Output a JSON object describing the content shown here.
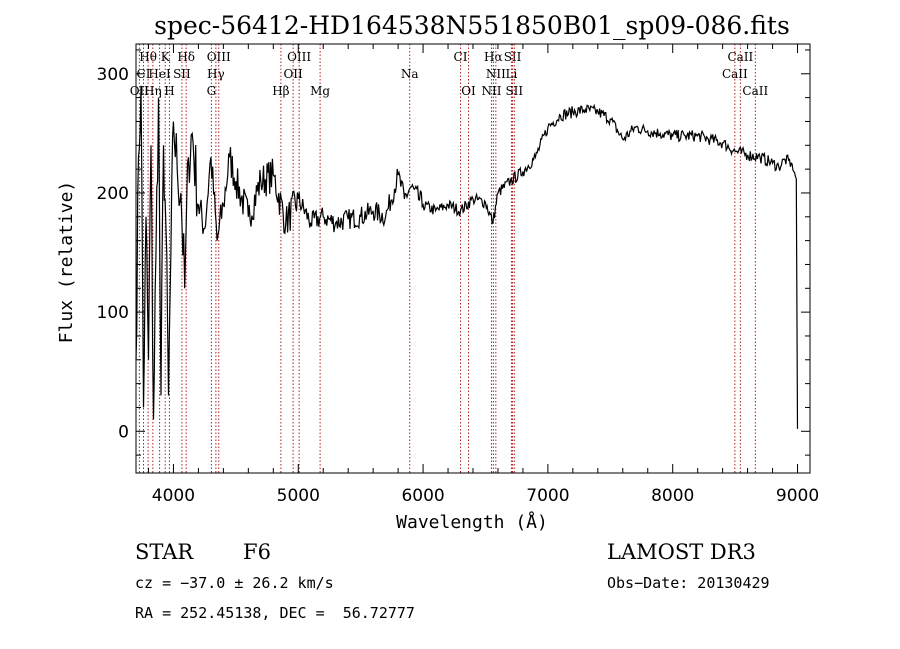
{
  "chart_data": {
    "type": "line",
    "title": "spec-56412-HD164538N551850B01_sp09-086.fits",
    "xlabel": "Wavelength (Å)",
    "ylabel": "Flux (relative)",
    "xlim": [
      3700,
      9100
    ],
    "ylim": [
      -35,
      325
    ],
    "xticks": [
      4000,
      5000,
      6000,
      7000,
      8000,
      9000
    ],
    "yticks": [
      0,
      100,
      200,
      300
    ],
    "grid": false,
    "series": [
      {
        "name": "flux",
        "x": [
          3700,
          3720,
          3740,
          3760,
          3780,
          3800,
          3820,
          3840,
          3860,
          3880,
          3900,
          3920,
          3940,
          3960,
          3980,
          4000,
          4030,
          4060,
          4090,
          4120,
          4150,
          4200,
          4250,
          4300,
          4350,
          4400,
          4450,
          4500,
          4600,
          4700,
          4800,
          4900,
          5000,
          5100,
          5200,
          5300,
          5400,
          5500,
          5600,
          5700,
          5800,
          5850,
          5900,
          6000,
          6100,
          6200,
          6300,
          6400,
          6500,
          6560,
          6600,
          6700,
          6800,
          6900,
          7000,
          7100,
          7200,
          7300,
          7400,
          7500,
          7600,
          7700,
          7800,
          7900,
          8000,
          8100,
          8200,
          8300,
          8400,
          8500,
          8600,
          8700,
          8800,
          8850,
          8900,
          8950,
          8990,
          9000
        ],
        "y": [
          60,
          230,
          290,
          20,
          180,
          60,
          240,
          10,
          150,
          280,
          30,
          240,
          170,
          30,
          150,
          260,
          220,
          200,
          120,
          230,
          250,
          190,
          170,
          230,
          160,
          190,
          230,
          210,
          180,
          210,
          215,
          175,
          195,
          175,
          180,
          175,
          178,
          180,
          185,
          180,
          215,
          195,
          205,
          190,
          185,
          190,
          185,
          195,
          192,
          175,
          200,
          210,
          218,
          230,
          255,
          265,
          268,
          270,
          268,
          262,
          245,
          255,
          252,
          250,
          248,
          248,
          248,
          245,
          242,
          235,
          232,
          230,
          225,
          222,
          228,
          225,
          212,
          2
        ]
      }
    ],
    "lines": [
      {
        "label": "Hθ",
        "x": 3797,
        "row": 1
      },
      {
        "label": "K",
        "x": 3934,
        "row": 1
      },
      {
        "label": "Hδ",
        "x": 4102,
        "row": 1
      },
      {
        "label": "OIII",
        "x": 4363,
        "row": 1
      },
      {
        "label": "OIII",
        "x": 5007,
        "row": 1
      },
      {
        "label": "CI",
        "x": 6300,
        "row": 1
      },
      {
        "label": "Hα",
        "x": 6563,
        "row": 1
      },
      {
        "label": "SII",
        "x": 6717,
        "row": 1
      },
      {
        "label": "CaII",
        "x": 8542,
        "row": 1
      },
      {
        "label": "CI",
        "x": 3760,
        "row": 2
      },
      {
        "label": "HeI",
        "x": 3889,
        "row": 2
      },
      {
        "label": "SII",
        "x": 4068,
        "row": 2
      },
      {
        "label": "Hγ",
        "x": 4340,
        "row": 2
      },
      {
        "label": "OII",
        "x": 4959,
        "row": 2
      },
      {
        "label": "Na",
        "x": 5893,
        "row": 2
      },
      {
        "label": "NII",
        "x": 6583,
        "row": 2
      },
      {
        "label": "Li",
        "x": 6708,
        "row": 2
      },
      {
        "label": "CaII",
        "x": 8498,
        "row": 2
      },
      {
        "label": "OII",
        "x": 3727,
        "row": 3
      },
      {
        "label": "Hη",
        "x": 3835,
        "row": 3
      },
      {
        "label": "H",
        "x": 3968,
        "row": 3
      },
      {
        "label": "G",
        "x": 4304,
        "row": 3
      },
      {
        "label": "Hβ",
        "x": 4861,
        "row": 3
      },
      {
        "label": "Mg",
        "x": 5175,
        "row": 3
      },
      {
        "label": "OI",
        "x": 6364,
        "row": 3
      },
      {
        "label": "NII",
        "x": 6548,
        "row": 3
      },
      {
        "label": "SII",
        "x": 6731,
        "row": 3
      },
      {
        "label": "CaII",
        "x": 8662,
        "row": 3
      }
    ]
  },
  "info": {
    "object_class": "STAR",
    "subclass": "F6",
    "survey": "LAMOST DR3",
    "cz": "cz = −37.0 ± 26.2 km/s",
    "obs_date": "Obs−Date: 20130429",
    "coords": "RA = 252.45138, DEC =  56.72777"
  }
}
